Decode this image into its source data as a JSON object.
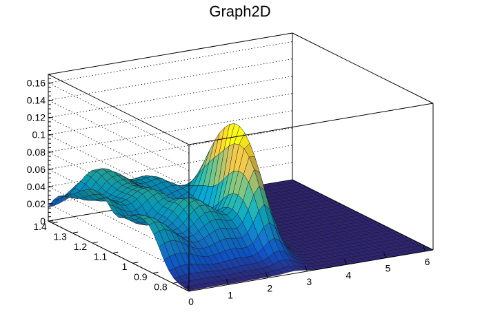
{
  "chart_data": {
    "type": "surface",
    "title": "Graph2D",
    "xlabel": "",
    "ylabel": "",
    "zlabel": "",
    "xlim": [
      0,
      6.2
    ],
    "ylim": [
      0.72,
      1.42
    ],
    "zlim": [
      0,
      0.17
    ],
    "x_ticks": [
      "0",
      "1",
      "2",
      "3",
      "4",
      "5",
      "6"
    ],
    "y_ticks": [
      "0.8",
      "0.9",
      "1",
      "1.1",
      "1.2",
      "1.3",
      "1.4"
    ],
    "z_ticks": [
      "0",
      "0.02",
      "0.04",
      "0.06",
      "0.08",
      "0.1",
      "0.12",
      "0.14",
      "0.16"
    ],
    "grid": true,
    "palette": [
      "#352a87",
      "#0f5cdd",
      "#1481d6",
      "#06a4ca",
      "#2eb7a4",
      "#87bf77",
      "#d1bb59",
      "#fec832",
      "#f9fb0e"
    ],
    "surface_features": [
      {
        "name": "ridge",
        "x": 2.9,
        "y": 1.05,
        "peak_z": 0.125,
        "note": "narrow peak reaching about 0.12-0.125"
      },
      {
        "name": "plateau",
        "x_range": [
          0,
          2.6
        ],
        "y_range": [
          0.85,
          1.4
        ],
        "z_range": [
          0.04,
          0.07
        ]
      },
      {
        "name": "floor",
        "x_range": [
          3.4,
          6.2
        ],
        "z": 0
      }
    ]
  }
}
